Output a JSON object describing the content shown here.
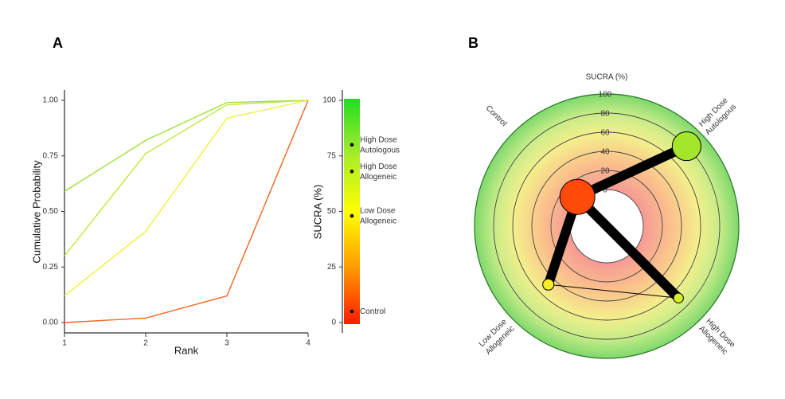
{
  "chart_data": [
    {
      "type": "line",
      "panel": "A",
      "xlabel": "Rank",
      "ylabel": "Cumulative Probability",
      "x": [
        1,
        2,
        3,
        4
      ],
      "xlim": [
        1,
        4
      ],
      "xticks": [
        1,
        2,
        3,
        4
      ],
      "ylim": [
        0,
        1
      ],
      "yticks": [
        {
          "value": 0,
          "label": "0.00"
        },
        {
          "value": 0.25,
          "label": "0.25"
        },
        {
          "value": 0.5,
          "label": "0.50"
        },
        {
          "value": 0.75,
          "label": "0.75"
        },
        {
          "value": 1,
          "label": "1.00"
        }
      ],
      "series": [
        {
          "color": "#9fe03a",
          "values": [
            0.59,
            0.82,
            0.99,
            1.0
          ]
        },
        {
          "color": "#bfe742",
          "values": [
            0.3,
            0.76,
            0.98,
            1.0
          ]
        },
        {
          "color": "#f0f03a",
          "values": [
            0.12,
            0.41,
            0.92,
            1.0
          ]
        },
        {
          "color": "#f2661f",
          "values": [
            0.0,
            0.02,
            0.12,
            1.0
          ]
        }
      ]
    },
    {
      "type": "colorbar",
      "ylabel": "SUCRA (%)",
      "ylim": [
        0,
        100
      ],
      "yticks": [
        0,
        25,
        50,
        75,
        100
      ],
      "colors": [
        "#ff1a00",
        "#ff9a00",
        "#ffff00",
        "#a8ec2a",
        "#22dd22"
      ],
      "categories": [
        [
          "High Dose",
          "Autologous"
        ],
        [
          "High Dose",
          "Allogeneic"
        ],
        [
          "Low Dose",
          "Allogeneic"
        ],
        [
          "Control"
        ]
      ],
      "values": [
        80,
        68,
        48,
        5
      ]
    },
    {
      "type": "radial",
      "panel": "B",
      "title": "SUCRA (%)",
      "rlim": [
        0,
        100
      ],
      "rticks": [
        0,
        20,
        40,
        60,
        80,
        100
      ],
      "categories": [
        [
          "Control"
        ],
        [
          "High Dose",
          "Autologous"
        ],
        [
          "High Dose",
          "Allogeneic"
        ],
        [
          "Low Dose",
          "Allogeneic"
        ]
      ],
      "values": [
        5,
        80,
        68,
        48
      ],
      "sizes": [
        1,
        0.82,
        0.28,
        0.32
      ],
      "colors": [
        "#ff4a0a",
        "#a3e62a",
        "#d6ef2a",
        "#f5ee22"
      ],
      "edges": [
        {
          "from": 0,
          "to": 1,
          "weight": 3
        },
        {
          "from": 0,
          "to": 2,
          "weight": 3
        },
        {
          "from": 0,
          "to": 3,
          "weight": 3
        },
        {
          "from": 3,
          "to": 2,
          "weight": 0.25
        }
      ]
    }
  ]
}
